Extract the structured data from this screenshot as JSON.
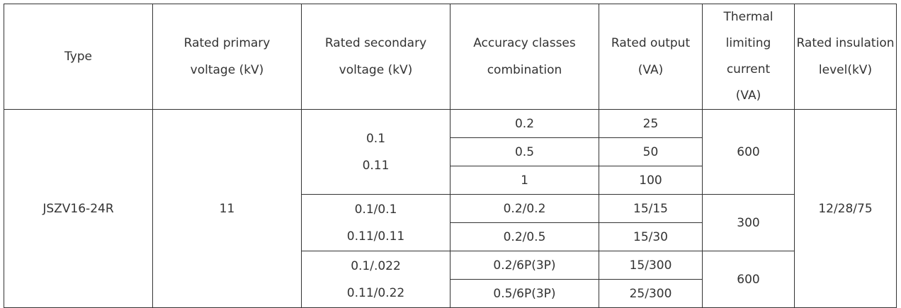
{
  "headers": {
    "type": "Type",
    "primary_1": "Rated primary",
    "primary_2": "voltage (kV)",
    "secondary_1": "Rated secondary",
    "secondary_2": "voltage (kV)",
    "accuracy_1": "Accuracy classes",
    "accuracy_2": "combination",
    "output_1": "Rated output",
    "output_2": "(VA)",
    "thermal_1": "Thermal",
    "thermal_2": "limiting current",
    "thermal_3": "(VA)",
    "insulation_1": "Rated insulation",
    "insulation_2": "level(kV)"
  },
  "type": "JSZV16-24R",
  "primary_voltage": "11",
  "insulation_level": "12/28/75",
  "groups": [
    {
      "secondary": [
        "0.1",
        "0.11"
      ],
      "thermal": "600",
      "rows": [
        {
          "accuracy": "0.2",
          "output": "25"
        },
        {
          "accuracy": "0.5",
          "output": "50"
        },
        {
          "accuracy": "1",
          "output": "100"
        }
      ]
    },
    {
      "secondary": [
        "0.1/0.1",
        "0.11/0.11"
      ],
      "thermal": "300",
      "rows": [
        {
          "accuracy": "0.2/0.2",
          "output": "15/15"
        },
        {
          "accuracy": "0.2/0.5",
          "output": "15/30"
        }
      ]
    },
    {
      "secondary": [
        "0.1/.022",
        "0.11/0.22"
      ],
      "thermal": "600",
      "rows": [
        {
          "accuracy": "0.2/6P(3P)",
          "output": "15/300"
        },
        {
          "accuracy": "0.5/6P(3P)",
          "output": "25/300"
        }
      ]
    }
  ]
}
